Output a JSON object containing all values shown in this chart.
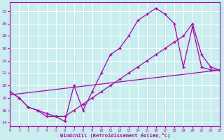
{
  "xlabel": "Windchill (Refroidissement éolien,°C)",
  "bg_color": "#c8eef0",
  "line_color": "#aa00aa",
  "grid_color": "#ffffff",
  "xlim": [
    0,
    23
  ],
  "ylim": [
    13.5,
    33.5
  ],
  "xticks": [
    0,
    1,
    2,
    3,
    4,
    5,
    6,
    7,
    8,
    9,
    10,
    11,
    12,
    13,
    14,
    15,
    16,
    17,
    18,
    19,
    20,
    21,
    22,
    23
  ],
  "yticks": [
    14,
    16,
    18,
    20,
    22,
    24,
    26,
    28,
    30,
    32
  ],
  "line1_x": [
    0,
    1,
    2,
    3,
    4,
    5,
    6,
    7,
    8,
    9,
    10,
    11,
    12,
    13,
    14,
    15,
    16,
    17,
    18,
    19,
    20,
    21,
    22,
    23
  ],
  "line1_y": [
    19,
    18,
    16.5,
    16,
    15,
    15,
    14.2,
    20,
    16,
    19,
    22,
    25,
    26,
    28,
    30.5,
    31.5,
    32.5,
    31.5,
    30,
    23,
    29.5,
    23,
    22.5,
    22.5
  ],
  "line2_x": [
    0,
    1,
    2,
    3,
    4,
    5,
    6,
    7,
    8,
    9,
    10,
    11,
    12,
    13,
    14,
    15,
    16,
    17,
    18,
    19,
    20,
    21,
    22,
    23
  ],
  "line2_y": [
    19,
    18,
    16.5,
    16,
    15.5,
    15,
    15,
    16,
    17,
    18,
    19,
    20,
    21,
    22,
    23,
    24,
    25,
    26,
    27,
    28,
    30,
    25,
    23,
    22.5
  ],
  "line3_x": [
    0,
    23
  ],
  "line3_y": [
    18.5,
    22.5
  ]
}
